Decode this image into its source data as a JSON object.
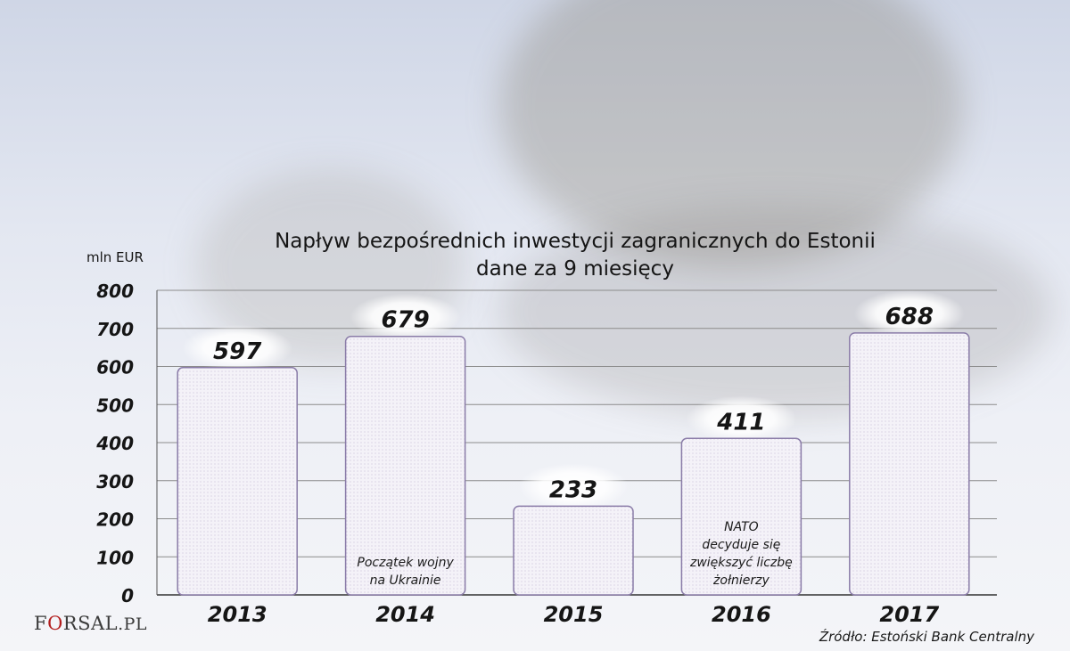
{
  "chart_data": {
    "type": "bar",
    "title": "Napływ bezpośrednich inwestycji zagranicznych do Estonii",
    "subtitle": "dane za 9 miesięcy",
    "ylabel": "mln EUR",
    "xlabel": "",
    "categories": [
      "2013",
      "2014",
      "2015",
      "2016",
      "2017"
    ],
    "values": [
      597,
      679,
      233,
      411,
      688
    ],
    "ylim": [
      0,
      800
    ],
    "yticks": [
      0,
      100,
      200,
      300,
      400,
      500,
      600,
      700,
      800
    ],
    "grid": true,
    "annotations": [
      {
        "category": "2014",
        "text": [
          "Początek wojny",
          "na Ukrainie"
        ]
      },
      {
        "category": "2016",
        "text": [
          "NATO",
          "decyduje się",
          "zwiększyć liczbę",
          "żołnierzy"
        ]
      }
    ],
    "colors": {
      "bar_fill": "#f1eff6",
      "bar_border": "#8a7ca8",
      "grid": "#8c8c8c",
      "text": "#151515"
    }
  },
  "source": "Źródło: Estoński Bank Centralny",
  "logo": {
    "part1": "F",
    "part2": "O",
    "part3": "RSAL",
    "part4": ".PL"
  }
}
